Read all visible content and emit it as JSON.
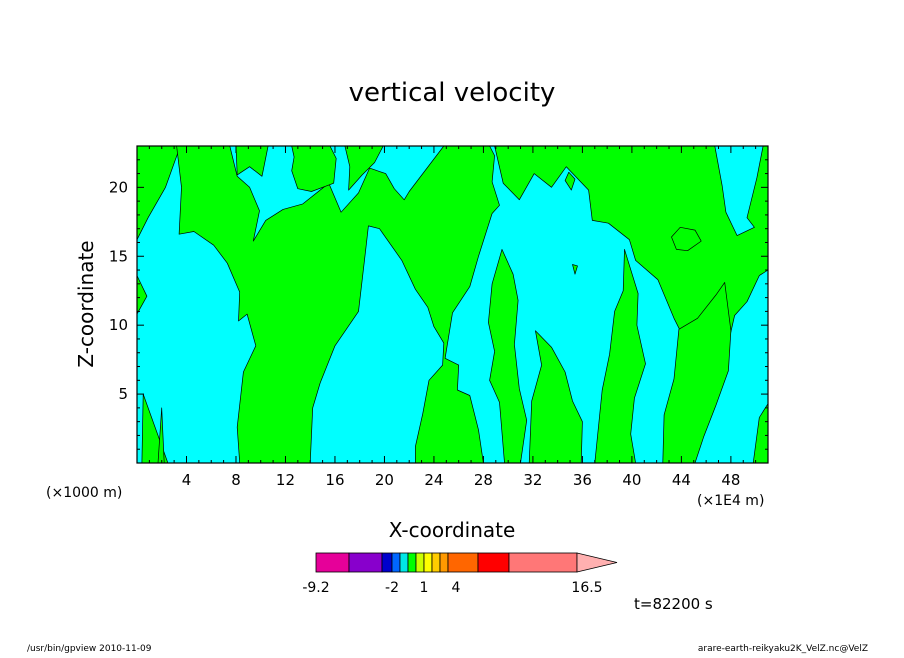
{
  "chart_data": {
    "type": "heatmap",
    "title": "vertical velocity",
    "xlabel": "X-coordinate",
    "ylabel": "Z-coordinate",
    "x_unit_left": "(×1000 m)",
    "x_unit_right": "(×1E4 m)",
    "xlim": [
      0,
      51
    ],
    "ylim": [
      0,
      23
    ],
    "x_ticks": [
      4,
      8,
      12,
      16,
      20,
      24,
      28,
      32,
      36,
      40,
      44,
      48
    ],
    "y_ticks": [
      5,
      10,
      15,
      20
    ],
    "colors": {
      "positive": "#00ff00",
      "negative": "#00ffff"
    },
    "colorbar": {
      "colors": [
        "#e60099",
        "#8800cc",
        "#0000cc",
        "#0066ff",
        "#00e6e6",
        "#00ff00",
        "#ccff00",
        "#ffff00",
        "#ffcc00",
        "#ff9900",
        "#ff6600",
        "#ff0000",
        "#ff7777",
        "#ffb0b0"
      ],
      "labels": [
        "-9.2",
        "-2",
        "1",
        "4",
        "16.5"
      ]
    },
    "time_label": "t=82200 s",
    "regions": [
      [
        [
          3.5,
          23
        ],
        [
          2.3,
          20
        ],
        [
          0.9,
          17.8
        ],
        [
          0,
          16.2
        ],
        [
          0,
          23
        ]
      ],
      [
        [
          0,
          13.6
        ],
        [
          0.8,
          12.1
        ],
        [
          0,
          10.8
        ]
      ],
      [
        [
          0.4,
          0
        ],
        [
          0.5,
          5
        ],
        [
          1.3,
          3
        ],
        [
          2.5,
          0
        ]
      ],
      [
        [
          1.7,
          0
        ],
        [
          2,
          4
        ],
        [
          2.2,
          0
        ]
      ],
      [
        [
          3.2,
          23
        ],
        [
          3.6,
          20
        ],
        [
          3.4,
          16.6
        ],
        [
          4.6,
          16.8
        ],
        [
          6.2,
          15.8
        ],
        [
          7.3,
          14.5
        ],
        [
          8.3,
          12.4
        ],
        [
          8.2,
          10.3
        ],
        [
          8.9,
          10.8
        ],
        [
          9.6,
          8.5
        ],
        [
          8.6,
          6.6
        ],
        [
          8.1,
          2.6
        ],
        [
          8.3,
          0
        ],
        [
          14,
          0
        ],
        [
          14.2,
          4
        ],
        [
          14.8,
          5.8
        ],
        [
          16,
          8.5
        ],
        [
          17.9,
          11
        ],
        [
          18.5,
          15.6
        ],
        [
          18.7,
          17.2
        ],
        [
          19.6,
          17
        ],
        [
          21.4,
          14.7
        ],
        [
          22.5,
          12.6
        ],
        [
          23.5,
          11.3
        ],
        [
          24,
          9.9
        ],
        [
          24.8,
          8.7
        ],
        [
          24.7,
          7.1
        ],
        [
          23.6,
          6
        ],
        [
          23.1,
          3.6
        ],
        [
          22.5,
          1.2
        ],
        [
          22.5,
          0
        ],
        [
          28,
          0
        ],
        [
          27.6,
          2.4
        ],
        [
          26.9,
          4.9
        ],
        [
          25.9,
          5.3
        ],
        [
          26,
          7.1
        ],
        [
          24.9,
          7.6
        ],
        [
          25.5,
          10.9
        ],
        [
          26.9,
          12.8
        ],
        [
          27.6,
          15
        ],
        [
          28.7,
          18.1
        ],
        [
          29.3,
          18.7
        ],
        [
          28.7,
          20.4
        ],
        [
          28.9,
          22.3
        ],
        [
          28.5,
          23
        ],
        [
          24.8,
          23
        ],
        [
          22,
          19.7
        ],
        [
          21.6,
          19.1
        ],
        [
          20.8,
          19.9
        ],
        [
          20.1,
          21
        ],
        [
          18.8,
          21.4
        ],
        [
          17.9,
          19.6
        ],
        [
          16.5,
          18.2
        ],
        [
          15.5,
          20.3
        ],
        [
          13.4,
          18.8
        ],
        [
          11.8,
          18.4
        ],
        [
          10.4,
          17.6
        ],
        [
          9.4,
          16.1
        ],
        [
          9.9,
          18.3
        ],
        [
          9.1,
          20
        ],
        [
          8.1,
          20.8
        ],
        [
          7.5,
          23
        ]
      ],
      [
        [
          8,
          23
        ],
        [
          8.1,
          20.9
        ],
        [
          9.1,
          21.5
        ],
        [
          10.1,
          20.8
        ],
        [
          10.6,
          23
        ]
      ],
      [
        [
          12.5,
          23
        ],
        [
          12.7,
          22.2
        ],
        [
          12.5,
          21.2
        ],
        [
          13,
          19.9
        ],
        [
          14.1,
          19.7
        ],
        [
          15.9,
          20.3
        ],
        [
          16.1,
          22.1
        ],
        [
          15.6,
          23
        ]
      ],
      [
        [
          16.8,
          23
        ],
        [
          17.2,
          21.5
        ],
        [
          17.1,
          19.8
        ],
        [
          18.2,
          20.9
        ],
        [
          19.2,
          21.8
        ],
        [
          19.9,
          23
        ]
      ],
      [
        [
          28.9,
          23
        ],
        [
          29.6,
          20.3
        ],
        [
          30.9,
          19.1
        ],
        [
          32.1,
          21
        ],
        [
          33.5,
          20
        ],
        [
          34.7,
          21.5
        ],
        [
          36.5,
          19.8
        ],
        [
          36.8,
          17.6
        ],
        [
          38.1,
          17.4
        ],
        [
          39.8,
          16.2
        ],
        [
          40.3,
          14.7
        ],
        [
          42.1,
          13.3
        ],
        [
          43.4,
          10.5
        ],
        [
          43.9,
          9.6
        ],
        [
          45.4,
          8.9
        ],
        [
          46.8,
          9.7
        ],
        [
          47.9,
          9.1
        ],
        [
          48.3,
          10.7
        ],
        [
          49.3,
          11.7
        ],
        [
          50.3,
          13.6
        ],
        [
          51,
          14
        ],
        [
          51,
          23
        ],
        [
          50.6,
          23
        ],
        [
          50.1,
          20.7
        ],
        [
          49.3,
          17.8
        ],
        [
          49.9,
          17.1
        ],
        [
          48.5,
          16.5
        ],
        [
          47.6,
          18.2
        ],
        [
          47.3,
          20.1
        ],
        [
          46.7,
          23
        ]
      ],
      [
        [
          29.7,
          0
        ],
        [
          29.3,
          4.4
        ],
        [
          28.5,
          6
        ],
        [
          28.9,
          8.1
        ],
        [
          28.4,
          10.2
        ],
        [
          28.7,
          13
        ],
        [
          29.5,
          15.5
        ],
        [
          30.4,
          13.7
        ],
        [
          30.8,
          11.8
        ],
        [
          30.5,
          8.6
        ],
        [
          30.9,
          5.4
        ],
        [
          31.5,
          3.1
        ],
        [
          31,
          0
        ]
      ],
      [
        [
          31.7,
          0
        ],
        [
          31.9,
          4.5
        ],
        [
          32.7,
          7.1
        ],
        [
          32.2,
          9.6
        ],
        [
          33.5,
          8.4
        ],
        [
          34.6,
          6.6
        ],
        [
          35.2,
          4.5
        ],
        [
          36,
          3
        ],
        [
          35.9,
          0
        ]
      ],
      [
        [
          37,
          0
        ],
        [
          37.6,
          5.3
        ],
        [
          38.2,
          7.9
        ],
        [
          38.6,
          11
        ],
        [
          39.3,
          12.5
        ],
        [
          39.4,
          15.5
        ],
        [
          40.5,
          12.3
        ],
        [
          40.4,
          10
        ],
        [
          41.1,
          7.2
        ],
        [
          40.2,
          4.7
        ],
        [
          39.9,
          2.1
        ],
        [
          40.3,
          0
        ]
      ],
      [
        [
          42.5,
          0
        ],
        [
          42.6,
          3.5
        ],
        [
          43.4,
          6.1
        ],
        [
          43.8,
          9.7
        ],
        [
          45.3,
          10.5
        ],
        [
          46.8,
          12.2
        ],
        [
          47.5,
          13.1
        ],
        [
          48,
          9.6
        ],
        [
          47.8,
          6.7
        ],
        [
          46.8,
          4.2
        ],
        [
          45.8,
          1.9
        ],
        [
          45.1,
          0
        ]
      ],
      [
        [
          49.8,
          0
        ],
        [
          50.3,
          3.3
        ],
        [
          51,
          4.3
        ],
        [
          51,
          0
        ]
      ],
      [
        [
          43.2,
          16.4
        ],
        [
          43.6,
          15.5
        ],
        [
          44.5,
          15.4
        ],
        [
          45.6,
          16.1
        ],
        [
          45.1,
          16.9
        ],
        [
          43.9,
          17.1
        ]
      ],
      [
        [
          35.2,
          14.4
        ],
        [
          35.4,
          13.7
        ],
        [
          35.6,
          14.3
        ]
      ],
      [
        [
          34.6,
          20.5
        ],
        [
          35.1,
          19.8
        ],
        [
          35.4,
          20.6
        ],
        [
          34.9,
          21.1
        ]
      ]
    ]
  },
  "footer": {
    "left": "/usr/bin/gpview 2010-11-09",
    "right": "arare-earth-reikyaku2K_VelZ.nc@VelZ"
  }
}
